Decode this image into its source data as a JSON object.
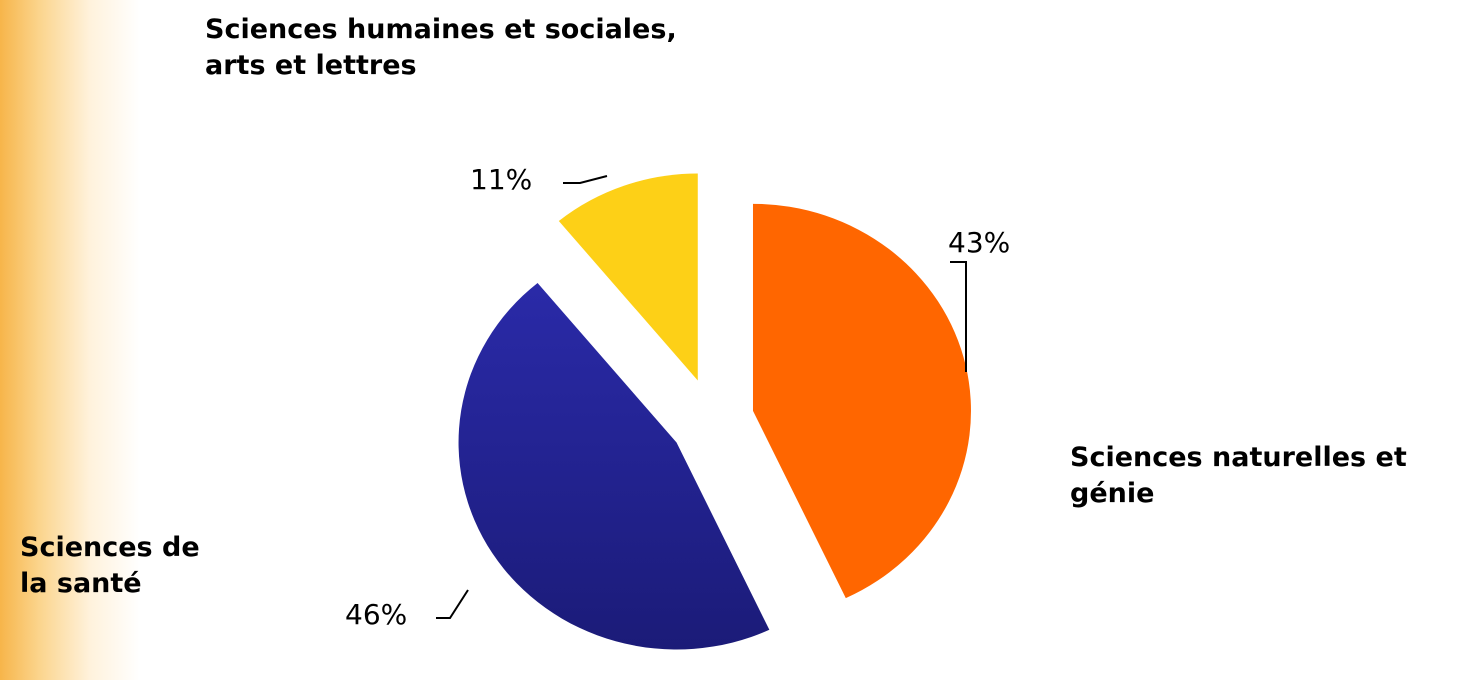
{
  "chart_data": {
    "type": "pie",
    "categories": [
      "Sciences naturelles et génie",
      "Sciences de la santé",
      "Sciences humaines et sociales, arts et lettres"
    ],
    "values": [
      43,
      46,
      11
    ],
    "value_labels": [
      "43%",
      "46%",
      "11%"
    ],
    "colors": [
      "#ff6600",
      "#23238f",
      "#fdd017"
    ]
  }
}
